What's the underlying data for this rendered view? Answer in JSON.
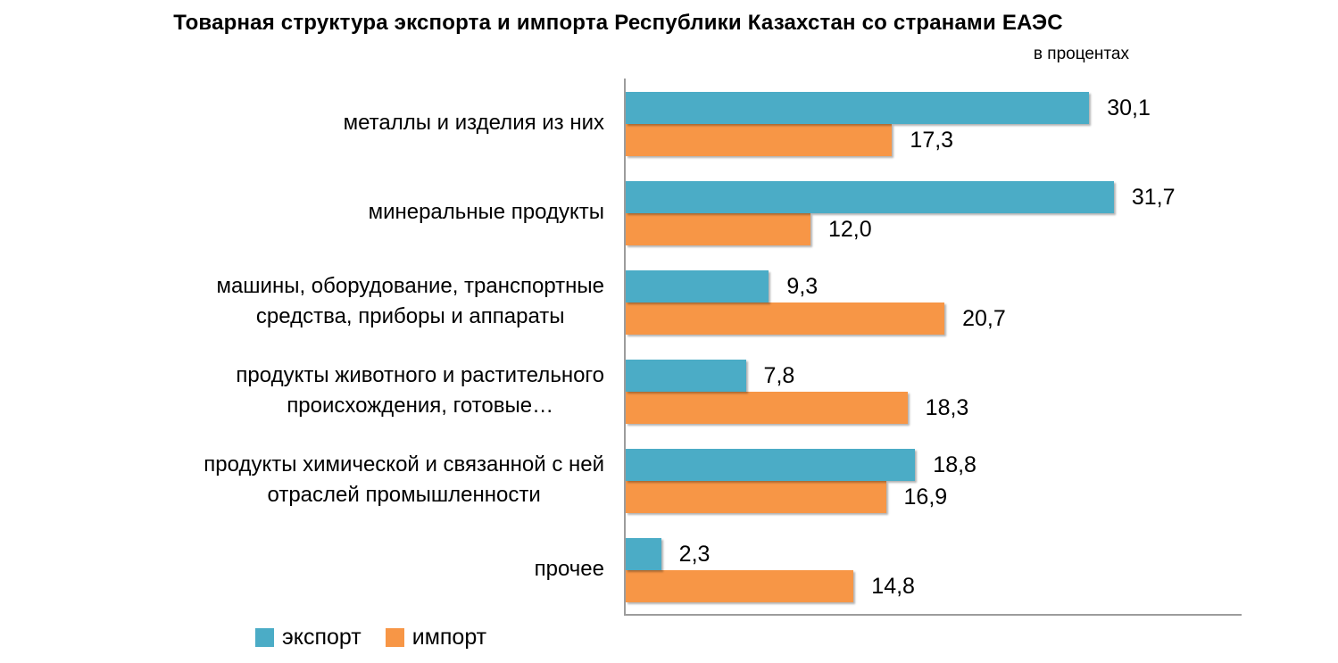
{
  "chart": {
    "title": "Товарная структура экспорта и импорта Республики Казахстан со странами ЕАЭС",
    "units_label": "в процентах"
  },
  "legend": {
    "export_label": "экспорт",
    "import_label": "импорт"
  },
  "colors": {
    "export": "#4BACC6",
    "import": "#F79646",
    "axis": "#9c9c9c"
  },
  "chart_data": {
    "type": "bar",
    "orientation": "horizontal",
    "title": "Товарная структура экспорта и импорта Республики Казахстан со странами ЕАЭС",
    "units": "в процентах",
    "axis_max": 40,
    "grid": false,
    "legend_position": "bottom-left",
    "categories": [
      "металлы и изделия из них",
      "минеральные продукты",
      "машины, оборудование, транспортные средства, приборы и аппараты",
      "продукты животного и растительного происхождения, готовые…",
      "продукты химической и связанной с ней отраслей промышленности",
      "прочее"
    ],
    "category_label_lines": [
      [
        "металлы и изделия из них"
      ],
      [
        "минеральные продукты"
      ],
      [
        "машины, оборудование, транспортные",
        "средства, приборы и аппараты"
      ],
      [
        "продукты животного и растительного",
        "происхождения, готовые…"
      ],
      [
        "продукты химической и связанной с ней",
        "отраслей промышленности"
      ],
      [
        "прочее"
      ]
    ],
    "series": [
      {
        "name": "экспорт",
        "color": "#4BACC6",
        "values": [
          30.1,
          31.7,
          9.3,
          7.8,
          18.8,
          2.3
        ],
        "labels": [
          "30,1",
          "31,7",
          "9,3",
          "7,8",
          "18,8",
          "2,3"
        ]
      },
      {
        "name": "импорт",
        "color": "#F79646",
        "values": [
          17.3,
          12.0,
          20.7,
          18.3,
          16.9,
          14.8
        ],
        "labels": [
          "17,3",
          "12,0",
          "20,7",
          "18,3",
          "16,9",
          "14,8"
        ]
      }
    ]
  }
}
